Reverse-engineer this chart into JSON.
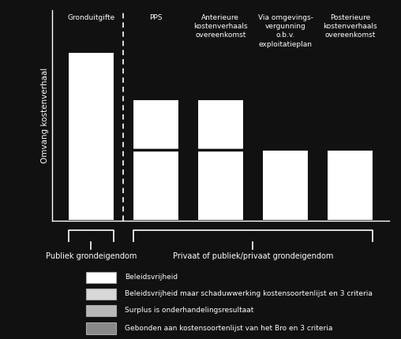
{
  "background_color": "#111111",
  "bar_color_full": "#ffffff",
  "bar_color_upper": "#e8e8e8",
  "text_color": "#ffffff",
  "ylabel": "Omvang kostenverhaal",
  "bars": [
    {
      "x": 1,
      "height": 10.0,
      "label": "Gronduitgifte"
    },
    {
      "x": 2,
      "height": 7.2,
      "label": "PPS"
    },
    {
      "x": 3,
      "height": 7.2,
      "label": "Anterieure\nkostenverhaals\novereenkomst"
    },
    {
      "x": 4,
      "height": 4.2,
      "label": "Via omgevings-\nvergunning\no.b.v.\nexploitatieplan"
    },
    {
      "x": 5,
      "height": 4.2,
      "label": "Posterieure\nkostenverhaals\novereenkomst"
    }
  ],
  "upper_segment_bottom": 4.2,
  "upper_segment_bars": [
    2,
    3
  ],
  "bar_width": 0.72,
  "dashed_x": 1.5,
  "xlim": [
    0.4,
    5.6
  ],
  "ylim": [
    0.0,
    12.5
  ],
  "bracket1": {
    "x_start": 0.65,
    "x_end": 1.35,
    "label": "Publiek grondeigendom"
  },
  "bracket2": {
    "x_start": 1.65,
    "x_end": 5.35,
    "label": "Privaat of publiek/privaat grondeigendom"
  },
  "legend_items": [
    {
      "label": "Beleidsvrijheid",
      "fc": "#ffffff",
      "ec": "#aaaaaa"
    },
    {
      "label": "Beleidsvrijheid maar schaduwwerking kostensoortenlijst en 3 criteria",
      "fc": "#d8d8d8",
      "ec": "#aaaaaa"
    },
    {
      "label": "Surplus is onderhandelingsresultaat",
      "fc": "#b8b8b8",
      "ec": "#aaaaaa"
    },
    {
      "label": "Gebonden aan kostensoortenlijst van het Bro en 3 criteria",
      "fc": "#888888",
      "ec": "#aaaaaa"
    }
  ]
}
